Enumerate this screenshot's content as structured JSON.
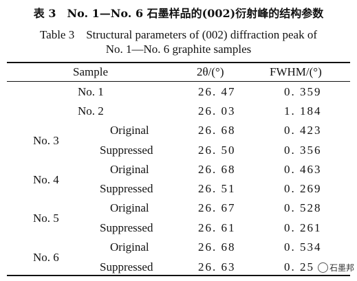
{
  "caption_cn": "表 3　No. 1—No. 6 石墨样品的(002)衍射峰的结构参数",
  "caption_en_line1": "Table 3　Structural parameters of (002) diffraction peak of",
  "caption_en_line2": "No. 1—No. 6 graphite samples",
  "headers": {
    "sample": "Sample",
    "two_theta": "2θ/(°)",
    "fwhm": "FWHM/(°)"
  },
  "rows": [
    {
      "sample": "No. 1",
      "two_theta": "26. 47",
      "fwhm": "0. 359"
    },
    {
      "sample": "No. 2",
      "two_theta": "26. 03",
      "fwhm": "1. 184"
    },
    {
      "sample": "No. 3",
      "state": "Original",
      "two_theta": "26. 68",
      "fwhm": "0. 423"
    },
    {
      "state": "Suppressed",
      "two_theta": "26. 50",
      "fwhm": "0. 356"
    },
    {
      "sample": "No. 4",
      "state": "Original",
      "two_theta": "26. 68",
      "fwhm": "0. 463"
    },
    {
      "state": "Suppressed",
      "two_theta": "26. 51",
      "fwhm": "0. 269"
    },
    {
      "sample": "No. 5",
      "state": "Original",
      "two_theta": "26. 67",
      "fwhm": "0. 528"
    },
    {
      "state": "Suppressed",
      "two_theta": "26. 61",
      "fwhm": "0. 261"
    },
    {
      "sample": "No. 6",
      "state": "Original",
      "two_theta": "26. 68",
      "fwhm": "0. 534"
    },
    {
      "state": "Suppressed",
      "two_theta": "26. 63",
      "fwhm": "0. 25"
    }
  ],
  "watermark": "石墨邦"
}
